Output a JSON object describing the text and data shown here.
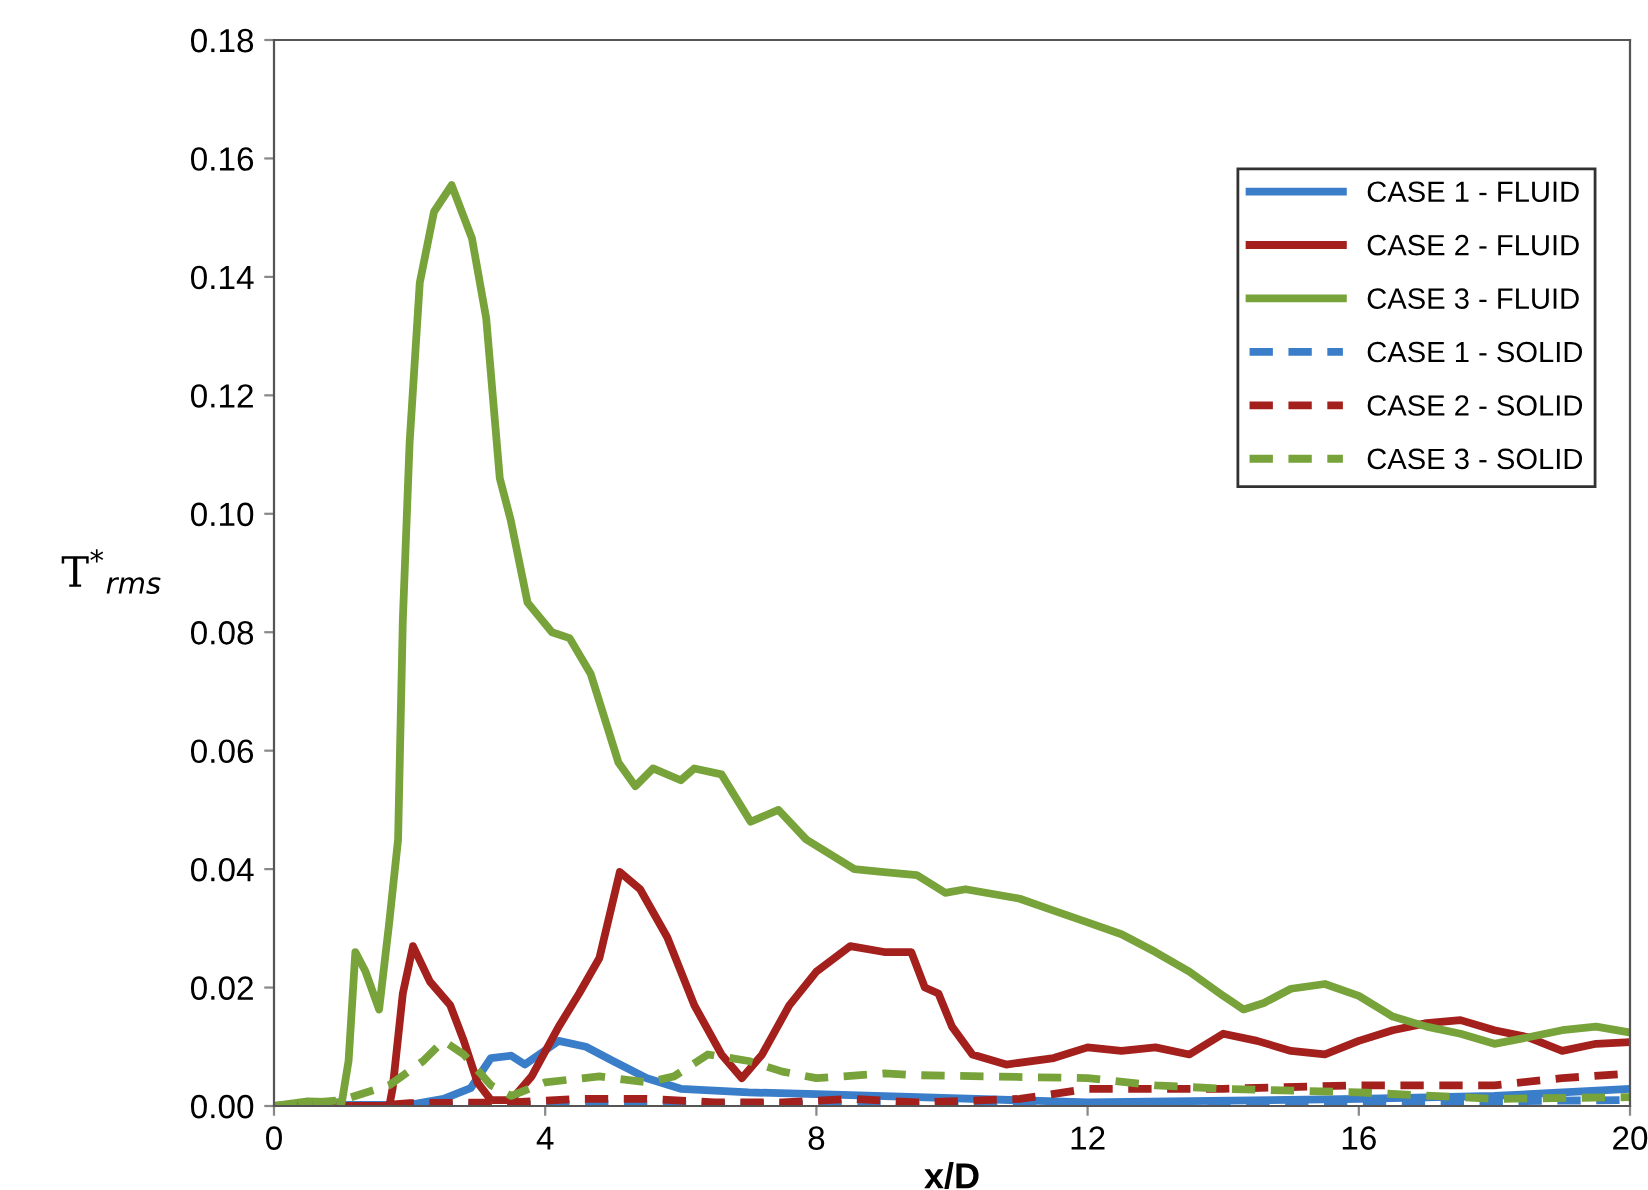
{
  "chart_data": {
    "type": "line",
    "xlabel": "x/D",
    "ylabel": "T$^{*}$$_{rms}$",
    "xlim": [
      0,
      20
    ],
    "xticks": [
      0,
      4,
      8,
      12,
      16,
      20
    ],
    "ylim": [
      0,
      0.18
    ],
    "yticks": [
      {
        "value": 0,
        "label": "0.00"
      },
      {
        "value": 0.02,
        "label": "0.02"
      },
      {
        "value": 0.04,
        "label": "0.04"
      },
      {
        "value": 0.06,
        "label": "0.06"
      },
      {
        "value": 0.08,
        "label": "0.08"
      },
      {
        "value": 0.1,
        "label": "0.10"
      },
      {
        "value": 0.12,
        "label": "0.12"
      },
      {
        "value": 0.14,
        "label": "0.14"
      },
      {
        "value": 0.16,
        "label": "0.16"
      },
      {
        "value": 0.18,
        "label": "0.18"
      }
    ],
    "grid": false,
    "legend": "right",
    "marker": "none",
    "series": [
      {
        "name": "CASE 1 - FLUID",
        "color": "#3a7dc9",
        "line_style": "solid",
        "x": [
          0,
          1,
          2,
          2.5,
          2.9,
          3.2,
          3.5,
          3.7,
          4.2,
          4.6,
          5.0,
          5.5,
          6.0,
          7,
          8,
          9.5,
          12,
          16,
          18,
          20
        ],
        "values": [
          0,
          0.0002,
          0.0002,
          0.0012,
          0.003,
          0.0081,
          0.0085,
          0.007,
          0.011,
          0.01,
          0.0076,
          0.0047,
          0.0029,
          0.0023,
          0.002,
          0.0015,
          0.0006,
          0.0012,
          0.0017,
          0.0029
        ]
      },
      {
        "name": "CASE 2 - FLUID",
        "color": "#a3201d",
        "line_style": "solid",
        "x": [
          0,
          1.7,
          1.75,
          1.9,
          2.05,
          2.3,
          2.6,
          2.8,
          3.0,
          3.2,
          3.5,
          3.8,
          4.2,
          4.5,
          4.8,
          5.1,
          5.4,
          5.8,
          6.2,
          6.6,
          6.9,
          7.2,
          7.6,
          8.0,
          8.5,
          9.0,
          9.4,
          9.6,
          9.8,
          10.0,
          10.3,
          10.8,
          11.5,
          12,
          12.5,
          13,
          13.5,
          14,
          14.5,
          15,
          15.5,
          16,
          16.5,
          17,
          17.5,
          18,
          18.5,
          19,
          19.5,
          20
        ],
        "values": [
          0,
          0,
          0.003,
          0.019,
          0.027,
          0.021,
          0.017,
          0.011,
          0.004,
          0.001,
          0.001,
          0.005,
          0.0134,
          0.019,
          0.025,
          0.0395,
          0.0366,
          0.0285,
          0.017,
          0.0087,
          0.0047,
          0.0087,
          0.017,
          0.0227,
          0.027,
          0.026,
          0.026,
          0.02,
          0.019,
          0.0134,
          0.0087,
          0.007,
          0.0081,
          0.0099,
          0.0093,
          0.0099,
          0.0087,
          0.0122,
          0.011,
          0.0093,
          0.0087,
          0.011,
          0.0128,
          0.014,
          0.0145,
          0.0128,
          0.0116,
          0.0093,
          0.0105,
          0.0108
        ]
      },
      {
        "name": "CASE 3 - FLUID",
        "color": "#77a33a",
        "line_style": "solid",
        "x": [
          0,
          0.5,
          1.0,
          1.1,
          1.2,
          1.35,
          1.55,
          1.7,
          1.83,
          1.9,
          2.0,
          2.15,
          2.36,
          2.62,
          2.92,
          3.13,
          3.33,
          3.49,
          3.74,
          4.1,
          4.36,
          4.67,
          5.08,
          5.33,
          5.59,
          6.0,
          6.2,
          6.6,
          7.03,
          7.44,
          7.85,
          8.56,
          9.0,
          9.48,
          9.9,
          10.2,
          11,
          11.5,
          12,
          12.5,
          13,
          13.5,
          14,
          14.3,
          14.6,
          15,
          15.5,
          16,
          16.5,
          17,
          17.5,
          18,
          18.5,
          19,
          19.5,
          20
        ],
        "values": [
          0,
          0.0008,
          0.0006,
          0.0076,
          0.026,
          0.0227,
          0.0163,
          0.031,
          0.045,
          0.082,
          0.112,
          0.139,
          0.151,
          0.1555,
          0.1465,
          0.133,
          0.106,
          0.099,
          0.085,
          0.08,
          0.079,
          0.073,
          0.058,
          0.054,
          0.057,
          0.055,
          0.057,
          0.056,
          0.048,
          0.05,
          0.045,
          0.04,
          0.0395,
          0.039,
          0.036,
          0.0366,
          0.035,
          0.033,
          0.031,
          0.029,
          0.026,
          0.0227,
          0.0186,
          0.0163,
          0.0174,
          0.0198,
          0.0206,
          0.0186,
          0.0151,
          0.0134,
          0.0122,
          0.0105,
          0.0116,
          0.0128,
          0.0134,
          0.0124
        ]
      },
      {
        "name": "CASE 1 - SOLID",
        "color": "#3a7dc9",
        "line_style": "dashed",
        "x": [
          0,
          4,
          8,
          12,
          16,
          20
        ],
        "values": [
          0,
          0.0003,
          0.0003,
          0.0004,
          0.0006,
          0.001
        ]
      },
      {
        "name": "CASE 2 - SOLID",
        "color": "#a3201d",
        "line_style": "dashed",
        "x": [
          0,
          1.5,
          2.0,
          3.5,
          4.5,
          5.5,
          6.5,
          7.5,
          8.5,
          9.5,
          11,
          12,
          14,
          16,
          18,
          19,
          20
        ],
        "values": [
          0,
          0,
          0.0005,
          0.0006,
          0.0012,
          0.0012,
          0.0006,
          0.0006,
          0.0012,
          0.0006,
          0.0012,
          0.0029,
          0.0029,
          0.0035,
          0.0035,
          0.0047,
          0.0055
        ]
      },
      {
        "name": "CASE 3 - SOLID",
        "color": "#77a33a",
        "line_style": "dashed",
        "x": [
          0,
          1.0,
          1.7,
          2.2,
          2.5,
          2.8,
          3.2,
          3.5,
          4.0,
          4.8,
          5.5,
          5.9,
          6.4,
          7.0,
          7.5,
          8.0,
          9.0,
          9.5,
          12,
          13,
          14,
          16,
          18,
          20
        ],
        "values": [
          0,
          0.001,
          0.0035,
          0.0076,
          0.011,
          0.0087,
          0.0035,
          0.0017,
          0.004,
          0.005,
          0.004,
          0.005,
          0.0087,
          0.0076,
          0.0058,
          0.0047,
          0.0055,
          0.0052,
          0.0047,
          0.0035,
          0.0029,
          0.0023,
          0.0012,
          0.0015
        ]
      }
    ]
  }
}
